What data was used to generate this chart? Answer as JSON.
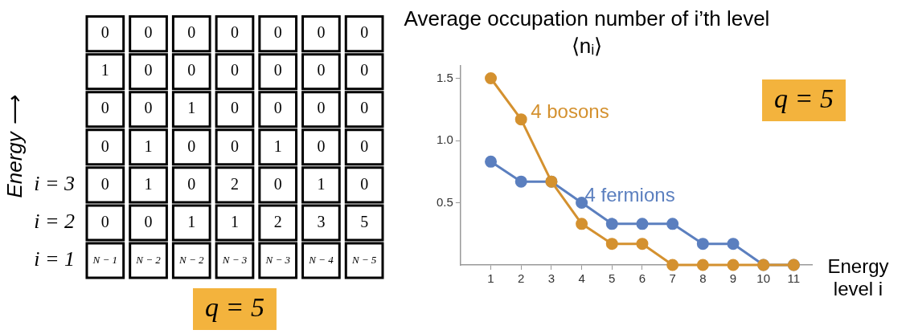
{
  "chart_data": [
    {
      "type": "heatmap",
      "ylabel": "Energy ⟶",
      "categories": [
        null,
        null,
        null,
        null,
        null,
        null,
        null
      ],
      "y_categories": [
        null,
        null,
        null,
        null,
        "i = 3",
        "i = 2",
        "i = 1"
      ],
      "cells": [
        [
          0,
          0,
          0,
          0,
          0,
          0,
          0
        ],
        [
          1,
          0,
          0,
          0,
          0,
          0,
          0
        ],
        [
          0,
          0,
          1,
          0,
          0,
          0,
          0
        ],
        [
          0,
          1,
          0,
          0,
          1,
          0,
          0
        ],
        [
          0,
          1,
          0,
          2,
          0,
          1,
          0
        ],
        [
          0,
          0,
          1,
          1,
          2,
          3,
          5
        ],
        [
          null,
          null,
          null,
          null,
          null,
          null,
          null
        ]
      ],
      "cell_labels": [
        [
          "0",
          "0",
          "0",
          "0",
          "0",
          "0",
          "0"
        ],
        [
          "1",
          "0",
          "0",
          "0",
          "0",
          "0",
          "0"
        ],
        [
          "0",
          "0",
          "1",
          "0",
          "0",
          "0",
          "0"
        ],
        [
          "0",
          "1",
          "0",
          "0",
          "1",
          "0",
          "0"
        ],
        [
          "0",
          "1",
          "0",
          "2",
          "0",
          "1",
          "0"
        ],
        [
          "0",
          "0",
          "1",
          "1",
          "2",
          "3",
          "5"
        ],
        [
          "N − 1",
          "N − 2",
          "N − 2",
          "N − 3",
          "N − 3",
          "N − 4",
          "N − 5"
        ]
      ],
      "annotations": [
        "q = 5"
      ]
    },
    {
      "type": "line",
      "title": "Average occupation number of i’th level ⟨nᵢ⟩",
      "xlabel": "Energy level i",
      "x": [
        1,
        2,
        3,
        4,
        5,
        6,
        7,
        8,
        9,
        10,
        11
      ],
      "series": [
        {
          "name": "4 bosons",
          "color": "#d4912f",
          "values": [
            1.5,
            1.17,
            0.67,
            0.33,
            0.17,
            0.17,
            0,
            0,
            0,
            0,
            0
          ]
        },
        {
          "name": "4 fermions",
          "color": "#5b7fbf",
          "values": [
            0.83,
            0.67,
            0.67,
            0.5,
            0.33,
            0.33,
            0.33,
            0.17,
            0.17,
            0,
            0
          ]
        }
      ],
      "xlim": [
        0,
        11.6
      ],
      "xticks": [
        1,
        2,
        3,
        4,
        5,
        6,
        7,
        8,
        9,
        10,
        11
      ],
      "ylim": [
        0,
        1.6
      ],
      "yticks": [
        0.5,
        {
          "value": 1,
          "label": "1.0"
        },
        1.5
      ],
      "grid": false,
      "legend": false,
      "marker": "circle",
      "line_style": "solid",
      "annotations": [
        "q = 5"
      ]
    }
  ]
}
